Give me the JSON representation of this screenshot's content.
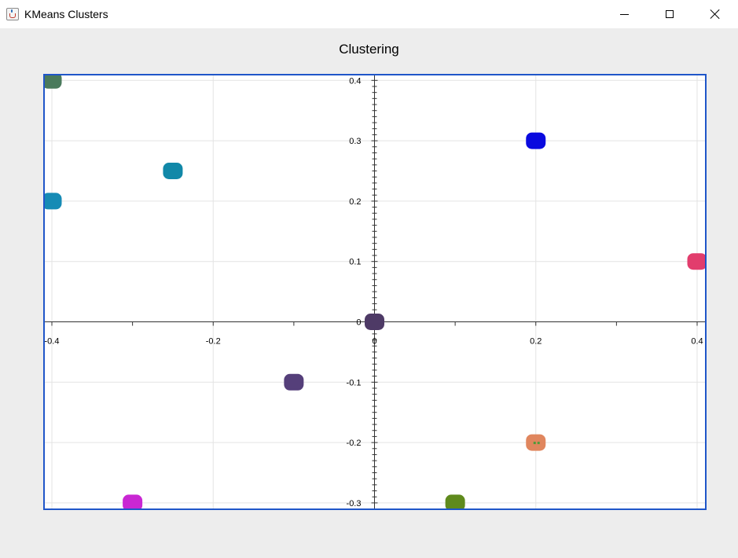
{
  "window": {
    "title": "KMeans Clusters",
    "controls": {
      "minimize": "minimize-icon",
      "maximize": "maximize-icon",
      "close": "close-icon"
    }
  },
  "chart_data": {
    "type": "scatter",
    "title": "Clustering",
    "xlabel": "",
    "ylabel": "",
    "xlim": [
      -0.41,
      0.41
    ],
    "ylim": [
      -0.31,
      0.41
    ],
    "grid": true,
    "legend": "none",
    "frame_color": "#1f56c9",
    "x_ticks": [
      {
        "value": -0.4,
        "label": "-0.4"
      },
      {
        "value": -0.2,
        "label": "-0.2"
      },
      {
        "value": 0,
        "label": "0"
      },
      {
        "value": 0.2,
        "label": "0.2"
      },
      {
        "value": 0.4,
        "label": "0.4"
      }
    ],
    "y_ticks": [
      {
        "value": 0.4,
        "label": "0.4"
      },
      {
        "value": 0.3,
        "label": "0.3"
      },
      {
        "value": 0.2,
        "label": "0.2"
      },
      {
        "value": 0.1,
        "label": "0.1"
      },
      {
        "value": 0,
        "label": "0"
      },
      {
        "value": -0.1,
        "label": "-0.1"
      },
      {
        "value": -0.2,
        "label": "-0.2"
      },
      {
        "value": -0.3,
        "label": "-0.3"
      }
    ],
    "x_minor_ticks": [
      -0.3,
      -0.1,
      0.1,
      0.3
    ],
    "clusters": [
      {
        "x": -0.4,
        "y": 0.4,
        "color": "#4a7a5c"
      },
      {
        "x": -0.25,
        "y": 0.25,
        "color": "#1188a8"
      },
      {
        "x": -0.4,
        "y": 0.2,
        "color": "#168bb5"
      },
      {
        "x": 0.2,
        "y": 0.3,
        "color": "#0a0adf"
      },
      {
        "x": 0.4,
        "y": 0.1,
        "color": "#e23d6d"
      },
      {
        "x": 0,
        "y": 0,
        "color": "#4e3a66"
      },
      {
        "x": -0.1,
        "y": -0.1,
        "color": "#553f7a"
      },
      {
        "x": 0.2,
        "y": -0.2,
        "color": "#e0865e",
        "accent": "#4f9a3a"
      },
      {
        "x": -0.3,
        "y": -0.3,
        "color": "#c927d3"
      },
      {
        "x": 0.1,
        "y": -0.3,
        "color": "#5f8a1c"
      }
    ]
  }
}
